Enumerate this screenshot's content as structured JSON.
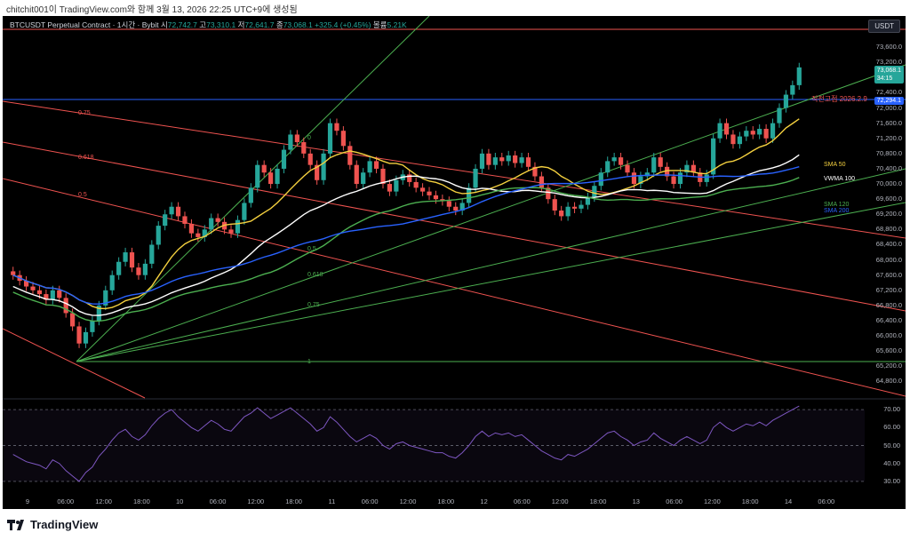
{
  "watermark": "chitchit001이 TradingView.com와 함께 3월 13, 2026 22:25 UTC+9에 생성됨",
  "symbol": {
    "name": "BTCUSDT Perpetual Contract · 1시간 · Bybit",
    "open_label": "시",
    "open": "72,742.7",
    "high_label": "고",
    "high": "73,310.1",
    "low_label": "저",
    "low": "72,641.7",
    "close_label": "종",
    "close": "73,068.1",
    "change": "+325.4 (+0.45%)",
    "volume_label": "볼륨",
    "volume": "5.21K"
  },
  "currency": "USDT",
  "price_axis": [
    "73,600.0",
    "73,200.0",
    "72,800.0",
    "72,400.0",
    "72,000.0",
    "71,600.0",
    "71,200.0",
    "70,800.0",
    "70,400.0",
    "70,000.0",
    "69,600.0",
    "69,200.0",
    "68,800.0",
    "68,400.0",
    "68,000.0",
    "67,600.0",
    "67,200.0",
    "66,800.0",
    "66,400.0",
    "66,000.0",
    "65,600.0",
    "65,200.0",
    "64,800.0"
  ],
  "price_tags": {
    "last_price": "73,068.1",
    "countdown": "34:15",
    "prev_high_price": "72,294.1",
    "prev_high_label": "직전고점 2026.2.9"
  },
  "fib_labels": {
    "red": [
      "0.75",
      "0.618",
      "0.5"
    ],
    "green": [
      "0",
      "0.5",
      "0.618",
      "0.75",
      "1"
    ]
  },
  "indicator_labels": {
    "sma50": "SMA 50",
    "vwma": "VWMA 100",
    "sma120": "SMA 120",
    "sma200": "SMA 200"
  },
  "rsi_axis": [
    "70.00",
    "60.00",
    "50.00",
    "40.00",
    "30.00"
  ],
  "time_axis": [
    "9",
    "06:00",
    "12:00",
    "18:00",
    "10",
    "06:00",
    "12:00",
    "18:00",
    "11",
    "06:00",
    "12:00",
    "18:00",
    "12",
    "06:00",
    "12:00",
    "18:00",
    "13",
    "06:00",
    "12:00",
    "18:00",
    "14",
    "06:00"
  ],
  "brand": "TradingView",
  "colors": {
    "bg": "#000000",
    "up": "#26a69a",
    "down": "#ef5350",
    "sma50": "#f4d03f",
    "vwma": "#ffffff",
    "sma120": "#4caf50",
    "sma200": "#2962ff",
    "rsi": "#7e57c2"
  },
  "chart_data": {
    "type": "candlestick",
    "ylim": [
      64600,
      74000
    ],
    "rsi_ylim": [
      27,
      73
    ],
    "closes": [
      67600,
      67450,
      67300,
      67200,
      67100,
      66950,
      67200,
      67000,
      66600,
      66250,
      65800,
      66100,
      66400,
      66800,
      67200,
      67600,
      67950,
      68200,
      67800,
      67600,
      67900,
      68400,
      68900,
      69200,
      69400,
      69150,
      68950,
      68700,
      68600,
      68800,
      69100,
      69000,
      68800,
      68700,
      69050,
      69500,
      69900,
      70500,
      70300,
      70000,
      70400,
      70900,
      71300,
      71100,
      70800,
      70500,
      70100,
      70800,
      71600,
      71400,
      71000,
      70500,
      70000,
      70300,
      70600,
      70400,
      70000,
      69800,
      70100,
      70250,
      70050,
      69900,
      69800,
      69700,
      69600,
      69550,
      69400,
      69300,
      69500,
      69900,
      70400,
      70800,
      70500,
      70700,
      70600,
      70750,
      70550,
      70700,
      70450,
      70200,
      69900,
      69600,
      69300,
      69150,
      69400,
      69350,
      69450,
      69650,
      69950,
      70300,
      70600,
      70700,
      70500,
      70300,
      70000,
      70200,
      70300,
      70700,
      70450,
      70200,
      70000,
      70300,
      70500,
      70300,
      70050,
      70250,
      71200,
      71600,
      71300,
      71050,
      71250,
      71400,
      71300,
      71450,
      71200,
      71600,
      72000,
      72350,
      72600,
      73068
    ],
    "rsi": [
      45,
      43,
      41,
      40,
      39,
      37,
      42,
      40,
      36,
      33,
      30,
      35,
      38,
      44,
      48,
      53,
      57,
      59,
      55,
      53,
      56,
      61,
      65,
      68,
      70,
      66,
      63,
      60,
      58,
      61,
      64,
      62,
      59,
      58,
      62,
      66,
      68,
      71,
      68,
      65,
      67,
      69,
      71,
      68,
      65,
      62,
      58,
      60,
      66,
      63,
      59,
      55,
      52,
      54,
      56,
      54,
      50,
      48,
      51,
      52,
      50,
      49,
      48,
      47,
      46,
      46,
      44,
      43,
      46,
      50,
      55,
      58,
      55,
      57,
      56,
      57,
      55,
      56,
      53,
      50,
      47,
      45,
      43,
      42,
      45,
      44,
      46,
      48,
      51,
      54,
      57,
      58,
      55,
      53,
      50,
      52,
      53,
      57,
      54,
      52,
      50,
      53,
      55,
      53,
      51,
      53,
      60,
      63,
      60,
      58,
      60,
      62,
      61,
      63,
      61,
      64,
      66,
      68,
      70,
      72
    ]
  }
}
